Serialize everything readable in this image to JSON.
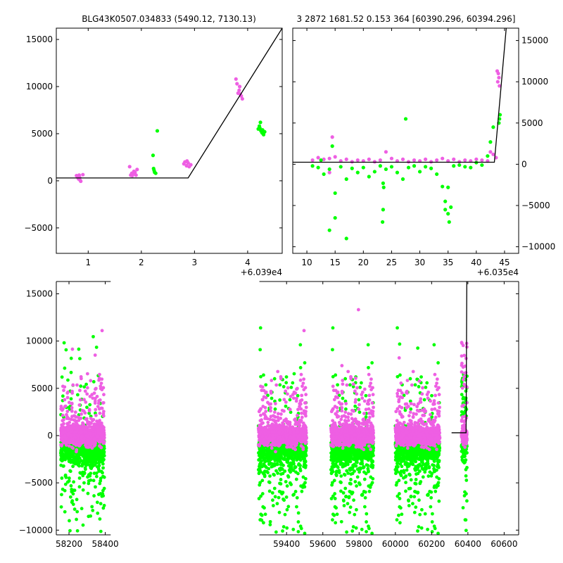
{
  "figure": {
    "title_left": "BLG43K0507.034833 (5490.12, 7130.13)",
    "title_right": "3 2872 1681.52 0.153 364 [60390.296, 60394.296]"
  },
  "colors": {
    "magenta": "#ee5fe3",
    "green": "#00ff00",
    "model": "#000000"
  },
  "chart_data": [
    {
      "type": "scatter",
      "name": "top-left",
      "xlim": [
        60390.4,
        60394.65
      ],
      "ylim": [
        -7700,
        16200
      ],
      "x_offset_label": "+6.039e4",
      "xticks": [
        60391,
        60392,
        60393,
        60394
      ],
      "xtick_labels": [
        "1",
        "2",
        "3",
        "4"
      ],
      "yticks": [
        -5000,
        0,
        5000,
        10000,
        15000
      ],
      "ytick_labels": [
        "−5000",
        "0",
        "5000",
        "10000",
        "15000"
      ],
      "y_axis_side": "left",
      "model": {
        "x": [
          60390.4,
          60392.88,
          60394.65
        ],
        "y": [
          300,
          300,
          16200
        ]
      },
      "series": [
        {
          "name": "",
          "color": "magenta",
          "points": [
            [
              60390.78,
              550
            ],
            [
              60390.8,
              400
            ],
            [
              60390.82,
              200
            ],
            [
              60390.84,
              350
            ],
            [
              60390.85,
              50
            ],
            [
              60390.86,
              -50
            ],
            [
              60390.9,
              650
            ],
            [
              60390.83,
              600
            ],
            [
              60390.81,
              300
            ],
            [
              60391.78,
              1500
            ],
            [
              60391.8,
              600
            ],
            [
              60391.82,
              800
            ],
            [
              60391.84,
              700
            ],
            [
              60391.86,
              1000
            ],
            [
              60391.88,
              900
            ],
            [
              60391.9,
              600
            ],
            [
              60391.92,
              1200
            ],
            [
              60391.83,
              550
            ],
            [
              60392.8,
              1800
            ],
            [
              60392.82,
              2000
            ],
            [
              60392.85,
              1600
            ],
            [
              60392.88,
              1900
            ],
            [
              60392.9,
              1500
            ],
            [
              60392.93,
              1700
            ],
            [
              60392.86,
              2100
            ],
            [
              60393.78,
              10800
            ],
            [
              60393.8,
              10300
            ],
            [
              60393.82,
              9300
            ],
            [
              60393.84,
              9600
            ],
            [
              60393.86,
              9200
            ],
            [
              60393.88,
              9000
            ],
            [
              60393.9,
              8700
            ],
            [
              60393.85,
              10000
            ]
          ]
        },
        {
          "name": "",
          "color": "green",
          "points": [
            [
              60392.23,
              1300
            ],
            [
              60392.25,
              900
            ],
            [
              60392.27,
              800
            ],
            [
              60392.24,
              1100
            ],
            [
              60392.22,
              2700
            ],
            [
              60392.3,
              5300
            ],
            [
              60394.2,
              5500
            ],
            [
              60394.22,
              5800
            ],
            [
              60394.24,
              6200
            ],
            [
              60394.25,
              5300
            ],
            [
              60394.27,
              5100
            ],
            [
              60394.29,
              5000
            ],
            [
              60394.3,
              4900
            ],
            [
              60394.32,
              5200
            ],
            [
              60394.23,
              5600
            ],
            [
              60394.28,
              5400
            ]
          ]
        }
      ]
    },
    {
      "type": "scatter",
      "name": "top-right",
      "xlim": [
        60357.5,
        60397.5
      ],
      "ylim": [
        -10800,
        16500
      ],
      "x_offset_label": "+6.035e4",
      "xticks": [
        60360,
        60365,
        60370,
        60375,
        60380,
        60385,
        60390,
        60395
      ],
      "xtick_labels": [
        "10",
        "15",
        "20",
        "25",
        "30",
        "35",
        "40",
        "45"
      ],
      "yticks": [
        -10000,
        -5000,
        0,
        5000,
        10000,
        15000
      ],
      "ytick_labels": [
        "−10000",
        "−5000",
        "0",
        "5000",
        "10000",
        "15000"
      ],
      "y_axis_side": "right",
      "model": {
        "x": [
          60357.5,
          60393.2,
          60395.3
        ],
        "y": [
          250,
          250,
          16500
        ]
      },
      "series": [
        {
          "name": "",
          "color": "magenta",
          "points": [
            [
              60361,
              500
            ],
            [
              60362,
              800
            ],
            [
              60363,
              600
            ],
            [
              60364,
              700
            ],
            [
              60365,
              900
            ],
            [
              60366,
              400
            ],
            [
              60367,
              600
            ],
            [
              60368,
              300
            ],
            [
              60369,
              500
            ],
            [
              60370,
              400
            ],
            [
              60371,
              600
            ],
            [
              60372,
              300
            ],
            [
              60373,
              500
            ],
            [
              60374,
              1500
            ],
            [
              60375,
              700
            ],
            [
              60376,
              400
            ],
            [
              60377,
              600
            ],
            [
              60378,
              300
            ],
            [
              60379,
              500
            ],
            [
              60380,
              400
            ],
            [
              60381,
              600
            ],
            [
              60382,
              300
            ],
            [
              60383,
              500
            ],
            [
              60384,
              700
            ],
            [
              60385,
              400
            ],
            [
              60386,
              600
            ],
            [
              60387,
              300
            ],
            [
              60388,
              500
            ],
            [
              60389,
              400
            ],
            [
              60390,
              600
            ],
            [
              60391,
              500
            ],
            [
              60392,
              400
            ],
            [
              60392.5,
              1500
            ],
            [
              60393,
              1200
            ],
            [
              60393.5,
              800
            ],
            [
              60393.8,
              10000
            ],
            [
              60393.9,
              11000
            ],
            [
              60394,
              10500
            ],
            [
              60394.1,
              9500
            ],
            [
              60393.7,
              11300
            ],
            [
              60364.5,
              3300
            ],
            [
              60364,
              -1000
            ]
          ]
        },
        {
          "name": "",
          "color": "green",
          "points": [
            [
              60361,
              -200
            ],
            [
              60362,
              -400
            ],
            [
              60363,
              -1200
            ],
            [
              60364,
              -600
            ],
            [
              60364.5,
              2200
            ],
            [
              60365,
              -3500
            ],
            [
              60365,
              -6500
            ],
            [
              60366,
              -300
            ],
            [
              60367,
              -1800
            ],
            [
              60367,
              -9000
            ],
            [
              60368,
              -500
            ],
            [
              60369,
              -1000
            ],
            [
              60370,
              -400
            ],
            [
              60371,
              -1500
            ],
            [
              60372,
              -900
            ],
            [
              60373,
              -200
            ],
            [
              60373.5,
              -2300
            ],
            [
              60373.6,
              -2800
            ],
            [
              60373.5,
              -5500
            ],
            [
              60373.4,
              -7000
            ],
            [
              60374,
              -600
            ],
            [
              60375,
              -300
            ],
            [
              60376,
              -1000
            ],
            [
              60377,
              -1800
            ],
            [
              60377.5,
              5500
            ],
            [
              60378,
              -400
            ],
            [
              60379,
              -200
            ],
            [
              60380,
              -900
            ],
            [
              60381,
              -300
            ],
            [
              60382,
              -500
            ],
            [
              60383,
              -1200
            ],
            [
              60384,
              -2700
            ],
            [
              60384.5,
              -4500
            ],
            [
              60384.5,
              -5500
            ],
            [
              60385,
              -2800
            ],
            [
              60385.5,
              -5200
            ],
            [
              60385,
              -6000
            ],
            [
              60385.2,
              -7000
            ],
            [
              60386,
              -200
            ],
            [
              60387,
              -100
            ],
            [
              60388,
              -300
            ],
            [
              60389,
              -400
            ],
            [
              60390,
              200
            ],
            [
              60391,
              -100
            ],
            [
              60392,
              1000
            ],
            [
              60392.5,
              2700
            ],
            [
              60393,
              4500
            ],
            [
              60394,
              5000
            ],
            [
              60394.2,
              6000
            ],
            [
              60394.1,
              5500
            ],
            [
              60364,
              -8000
            ],
            [
              60362.5,
              500
            ]
          ]
        }
      ]
    },
    {
      "type": "scatter",
      "name": "bottom",
      "xlim": [
        58130,
        60680
      ],
      "ylim": [
        -10500,
        16300
      ],
      "xticks": [
        58200,
        58400,
        59400,
        59600,
        59800,
        60000,
        60200,
        60400,
        60600
      ],
      "xtick_labels": [
        "58200",
        "58400",
        "59400",
        "59600",
        "59800",
        "60000",
        "60200",
        "60400",
        "60600"
      ],
      "yticks": [
        -10000,
        -5000,
        0,
        5000,
        10000,
        15000
      ],
      "ytick_labels": [
        "−10000",
        "−5000",
        "0",
        "5000",
        "10000",
        "15000"
      ],
      "y_axis_side": "left",
      "axis_break": [
        58430,
        59250
      ],
      "seasons": [
        [
          58155,
          58395
        ],
        [
          59245,
          59510
        ],
        [
          59645,
          59880
        ],
        [
          60000,
          60245
        ],
        [
          60365,
          60395
        ]
      ],
      "model": {
        "x": [
          60310,
          60390,
          60394,
          60395
        ],
        "y": [
          300,
          300,
          16300,
          16300
        ]
      }
    }
  ]
}
